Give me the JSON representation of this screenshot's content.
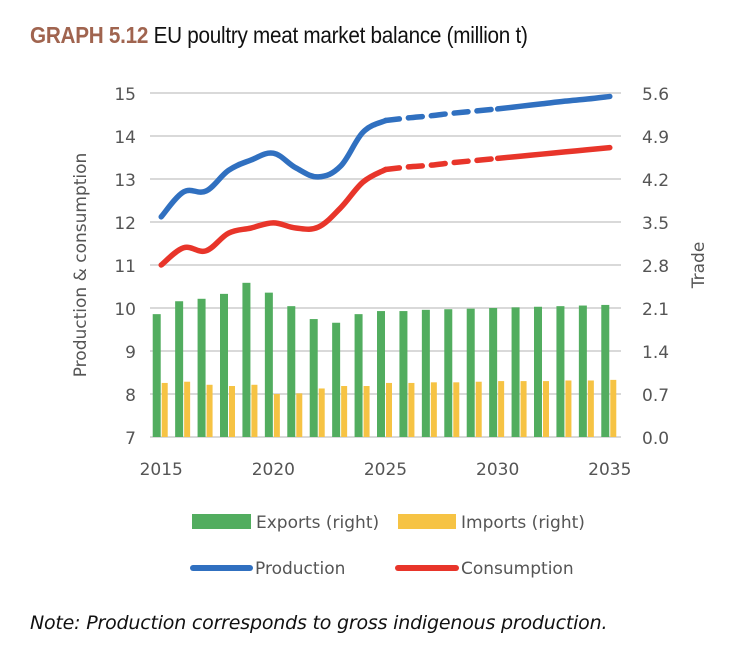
{
  "title": {
    "tag": "GRAPH 5.12",
    "text": "EU poultry meat market balance (million t)"
  },
  "note": "Note: Production corresponds to gross indigenous production.",
  "colors": {
    "exports": "#52ad5f",
    "imports": "#f6c344",
    "production": "#3070c0",
    "consumption": "#e8352a",
    "grid": "#d9d9d9",
    "tick": "#555555"
  },
  "chart_data": {
    "type": "bar+line",
    "title": "EU poultry meat market balance (million t)",
    "xlabel": "",
    "ylabel": "Production & consumption",
    "y2label": "Trade",
    "ylim": [
      7,
      15
    ],
    "y2lim": [
      0,
      5.6
    ],
    "yticks": [
      "7",
      "8",
      "9",
      "10",
      "11",
      "12",
      "13",
      "14",
      "15"
    ],
    "y2ticks": [
      "0.0",
      "0.7",
      "1.4",
      "2.1",
      "2.8",
      "3.5",
      "4.2",
      "4.9",
      "5.6"
    ],
    "xticks": [
      "2015",
      "2020",
      "2025",
      "2030",
      "2035"
    ],
    "grid": true,
    "legend_position": "bottom",
    "categories": [
      2015,
      2016,
      2017,
      2018,
      2019,
      2020,
      2021,
      2022,
      2023,
      2024,
      2025,
      2026,
      2027,
      2028,
      2029,
      2030,
      2031,
      2032,
      2033,
      2034,
      2035
    ],
    "projection_dashed_range": [
      2025,
      2030
    ],
    "series": [
      {
        "name": "Exports (right)",
        "type": "bar",
        "axis": "right",
        "values": [
          2.0,
          2.21,
          2.25,
          2.33,
          2.51,
          2.35,
          2.13,
          1.92,
          1.86,
          2.0,
          2.05,
          2.05,
          2.07,
          2.08,
          2.09,
          2.1,
          2.11,
          2.12,
          2.13,
          2.14,
          2.15
        ]
      },
      {
        "name": "Imports (right)",
        "type": "bar",
        "axis": "right",
        "values": [
          0.88,
          0.9,
          0.85,
          0.83,
          0.85,
          0.7,
          0.71,
          0.79,
          0.83,
          0.83,
          0.88,
          0.88,
          0.89,
          0.89,
          0.9,
          0.91,
          0.91,
          0.91,
          0.92,
          0.92,
          0.93
        ]
      },
      {
        "name": "Production",
        "type": "line",
        "axis": "left",
        "values": [
          12.12,
          12.7,
          12.72,
          13.2,
          13.44,
          13.6,
          13.26,
          13.05,
          13.3,
          14.09,
          14.36,
          14.42,
          14.47,
          14.53,
          14.58,
          14.63,
          14.69,
          14.75,
          14.81,
          14.86,
          14.92
        ]
      },
      {
        "name": "Consumption",
        "type": "line",
        "axis": "left",
        "values": [
          11.0,
          11.4,
          11.33,
          11.74,
          11.86,
          11.98,
          11.86,
          11.88,
          12.33,
          12.93,
          13.22,
          13.28,
          13.32,
          13.38,
          13.43,
          13.48,
          13.53,
          13.58,
          13.63,
          13.68,
          13.73
        ]
      }
    ]
  },
  "legend": {
    "exports": "Exports (right)",
    "imports": "Imports (right)",
    "production": "Production",
    "consumption": "Consumption"
  }
}
